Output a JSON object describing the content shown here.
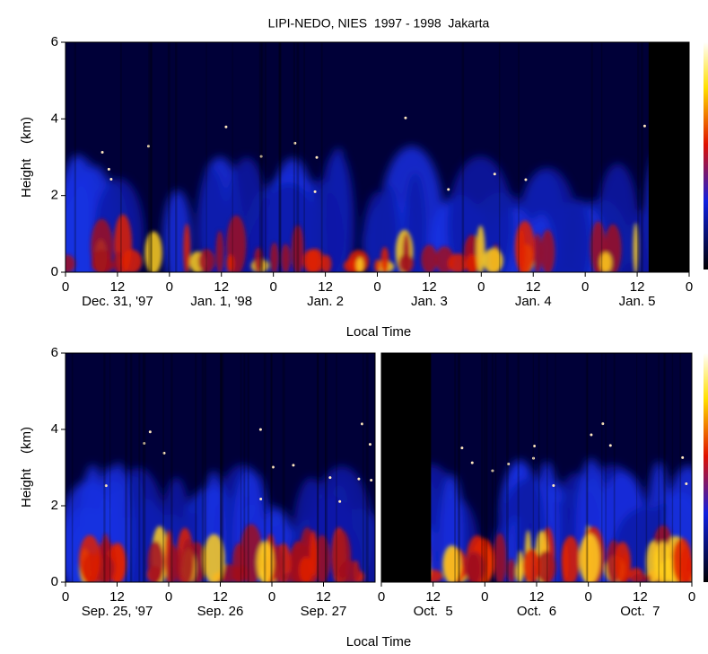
{
  "chart_data": [
    {
      "type": "heatmap",
      "title": "LIPI-NEDO, NIES  1997 - 1998  Jakarta",
      "ylabel": "Height    (km)",
      "xlabel": "Local Time",
      "ylim": [
        0,
        6
      ],
      "yticks": [
        0,
        2,
        4,
        6
      ],
      "xlim": [
        0,
        144
      ],
      "xticks": [
        0,
        12,
        {
          "value": 24,
          "label": "0"
        },
        {
          "value": 36,
          "label": "12"
        },
        {
          "value": 48,
          "label": "0"
        },
        {
          "value": 60,
          "label": "12"
        },
        {
          "value": 72,
          "label": "0"
        },
        {
          "value": 84,
          "label": "12"
        },
        {
          "value": 96,
          "label": "0"
        },
        {
          "value": 108,
          "label": "12"
        },
        {
          "value": 120,
          "label": "0"
        },
        {
          "value": 132,
          "label": "12"
        },
        {
          "value": 144,
          "label": "0"
        }
      ],
      "date_labels": [
        {
          "value": 12,
          "label": "Dec. 31, '97"
        },
        {
          "value": 36,
          "label": "Jan. 1, '98"
        },
        {
          "value": 60,
          "label": "Jan. 2"
        },
        {
          "value": 84,
          "label": "Jan. 3"
        },
        {
          "value": 108,
          "label": "Jan. 4"
        },
        {
          "value": 132,
          "label": "Jan. 5"
        }
      ]
    },
    {
      "type": "heatmap",
      "ylabel": "Height    (km)",
      "xlabel": "Local Time",
      "ylim": [
        0,
        6
      ],
      "yticks": [
        0,
        2,
        4,
        6
      ],
      "xlim": [
        0,
        72
      ],
      "xticks": [
        0,
        12,
        {
          "value": 24,
          "label": "0"
        },
        {
          "value": 36,
          "label": "12"
        },
        {
          "value": 48,
          "label": "0"
        },
        {
          "value": 60,
          "label": "12"
        }
      ],
      "date_labels": [
        {
          "value": 12,
          "label": "Sep. 25, '97"
        },
        {
          "value": 36,
          "label": "Sep. 26"
        },
        {
          "value": 60,
          "label": "Sep. 27"
        }
      ]
    },
    {
      "type": "heatmap",
      "ylim": [
        0,
        6
      ],
      "xlim": [
        0,
        72
      ],
      "xticks": [
        0,
        12,
        {
          "value": 24,
          "label": "0"
        },
        {
          "value": 36,
          "label": "12"
        },
        {
          "value": 48,
          "label": "0"
        },
        {
          "value": 60,
          "label": "12"
        },
        {
          "value": 72,
          "label": "0"
        }
      ],
      "date_labels": [
        {
          "value": 12,
          "label": "Oct.  5"
        },
        {
          "value": 36,
          "label": "Oct.  6"
        },
        {
          "value": 60,
          "label": "Oct.  7"
        }
      ]
    }
  ]
}
